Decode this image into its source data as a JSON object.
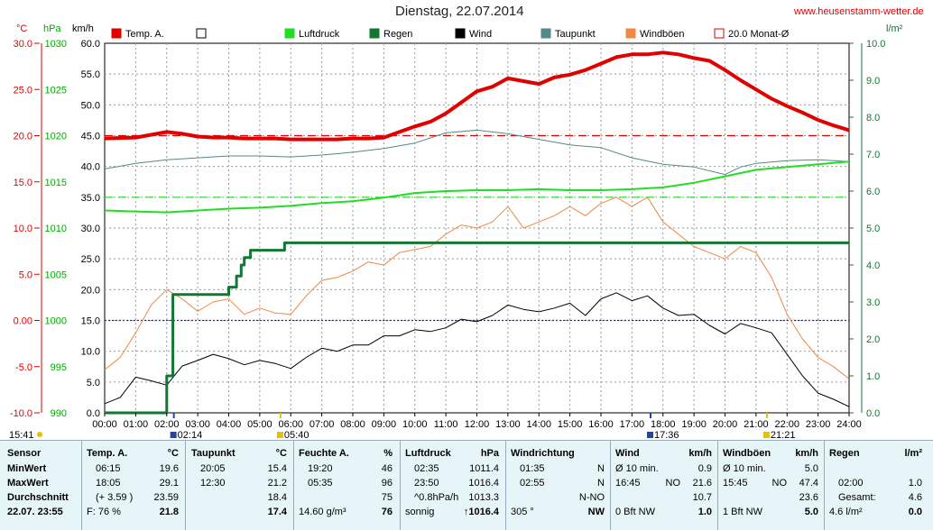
{
  "header": {
    "title": "Dienstag, 22.07.2014",
    "website": "www.heusenstamm-wetter.de"
  },
  "units": {
    "temp": "°C",
    "press": "hPa",
    "wind": "km/h",
    "rain": "l/m²"
  },
  "legend": [
    {
      "label": "Temp. A.",
      "color": "#e00000"
    },
    {
      "label": "",
      "color": "#ffffff"
    },
    {
      "label": "Luftdruck",
      "color": "#22dd22"
    },
    {
      "label": "Regen",
      "color": "#117733"
    },
    {
      "label": "Wind",
      "color": "#000000"
    },
    {
      "label": "Taupunkt",
      "color": "#558888"
    },
    {
      "label": "Windböen",
      "color": "#ee8844"
    },
    {
      "label": "20.0 Monat-Ø",
      "color": "#e00000"
    }
  ],
  "chart_data": {
    "type": "line",
    "x_label_ticks": [
      "00:00",
      "01:00",
      "02:00",
      "03:00",
      "04:00",
      "05:00",
      "06:00",
      "07:00",
      "08:00",
      "09:00",
      "10:00",
      "11:00",
      "12:00",
      "13:00",
      "14:00",
      "15:00",
      "16:00",
      "17:00",
      "18:00",
      "19:00",
      "20:00",
      "21:00",
      "22:00",
      "23:00",
      "24:00"
    ],
    "temp_axis": {
      "ticks": [
        "30.0",
        "25.0",
        "20.0",
        "15.0",
        "10.0",
        "5.0",
        "0.00",
        "-5.0",
        "-10.0"
      ],
      "range": [
        -10,
        30
      ],
      "color": "#e00000"
    },
    "press_axis": {
      "ticks": [
        "1030",
        "1025",
        "1020",
        "1015",
        "1010",
        "1005",
        "1000",
        "995",
        "990"
      ],
      "range": [
        990,
        1030
      ],
      "color": "#00aa00"
    },
    "wind_axis": {
      "ticks": [
        "60.0",
        "55.0",
        "50.0",
        "45.0",
        "40.0",
        "35.0",
        "30.0",
        "25.0",
        "20.0",
        "15.0",
        "10.0",
        "5.0",
        "0.0"
      ],
      "range": [
        0,
        60
      ],
      "color": "#000000"
    },
    "rain_axis": {
      "ticks": [
        "10.0",
        "9.0",
        "8.0",
        "7.0",
        "6.0",
        "5.0",
        "4.0",
        "3.0",
        "2.0",
        "1.0",
        "0.0"
      ],
      "range": [
        0,
        10
      ],
      "color": "#117733"
    },
    "monthly_avg_temp": 20.0,
    "series": [
      {
        "name": "Temp. A.",
        "axis": "temp",
        "color": "#e00000",
        "x": [
          0,
          1,
          1.5,
          2,
          2.5,
          3,
          3.5,
          4,
          4.5,
          5,
          5.5,
          6,
          6.5,
          7,
          7.5,
          8,
          8.5,
          9,
          9.5,
          10,
          10.5,
          11,
          11.5,
          12,
          12.5,
          13,
          13.5,
          14,
          14.5,
          15,
          15.5,
          16,
          16.5,
          17,
          17.5,
          18,
          18.5,
          19,
          19.5,
          20,
          20.5,
          21,
          21.5,
          22,
          22.5,
          23,
          23.5,
          24
        ],
        "values": [
          19.7,
          19.8,
          20.1,
          20.4,
          20.2,
          19.9,
          19.8,
          19.8,
          19.7,
          19.7,
          19.7,
          19.6,
          19.6,
          19.6,
          19.6,
          19.7,
          19.7,
          19.8,
          20.4,
          21.0,
          21.5,
          22.4,
          23.6,
          24.8,
          25.3,
          26.2,
          25.9,
          25.6,
          26.3,
          26.6,
          27.1,
          27.8,
          28.5,
          28.8,
          28.8,
          29.0,
          28.8,
          28.4,
          28.1,
          27.1,
          26.0,
          25.0,
          24.0,
          23.2,
          22.5,
          21.7,
          21.1,
          20.6
        ]
      },
      {
        "name": "Taupunkt",
        "axis": "temp",
        "color": "#558888",
        "x": [
          0,
          1,
          2,
          3,
          4,
          5,
          6,
          7,
          8,
          9,
          10,
          11,
          12,
          13,
          14,
          15,
          16,
          17,
          18,
          19,
          20,
          20.5,
          21,
          22,
          23,
          24
        ],
        "values": [
          16.4,
          17.0,
          17.4,
          17.6,
          17.8,
          17.8,
          17.7,
          17.9,
          18.2,
          18.6,
          19.2,
          20.3,
          20.6,
          20.2,
          19.6,
          19.0,
          18.7,
          17.6,
          16.9,
          16.6,
          15.8,
          16.6,
          17.0,
          17.3,
          17.4,
          17.2
        ]
      },
      {
        "name": "Luftdruck",
        "axis": "press",
        "color": "#22dd22",
        "x": [
          0,
          1,
          2,
          3,
          4,
          5,
          6,
          7,
          8,
          9,
          10,
          11,
          12,
          13,
          14,
          15,
          16,
          17,
          18,
          19,
          20,
          21,
          22,
          23,
          24
        ],
        "values": [
          1011.9,
          1011.8,
          1011.7,
          1011.9,
          1012.1,
          1012.2,
          1012.4,
          1012.7,
          1012.9,
          1013.3,
          1013.8,
          1014.0,
          1014.1,
          1014.1,
          1014.2,
          1014.1,
          1014.1,
          1014.2,
          1014.4,
          1014.9,
          1015.6,
          1016.3,
          1016.6,
          1016.9,
          1017.2
        ]
      },
      {
        "name": "Wind",
        "axis": "wind",
        "color": "#000000",
        "x": [
          0,
          0.5,
          1,
          1.5,
          2,
          2.5,
          3,
          3.5,
          4,
          4.5,
          5,
          5.5,
          6,
          6.5,
          7,
          7.5,
          8,
          8.5,
          9,
          9.5,
          10,
          10.5,
          11,
          11.5,
          12,
          12.5,
          13,
          13.5,
          14,
          14.5,
          15,
          15.5,
          16,
          16.5,
          17,
          17.5,
          18,
          18.5,
          19,
          19.5,
          20,
          20.5,
          21,
          21.5,
          22,
          22.5,
          23,
          23.5,
          24
        ],
        "values": [
          1.5,
          2.5,
          5.8,
          5.2,
          4.5,
          7.6,
          8.5,
          9.5,
          8.8,
          7.8,
          8.5,
          8.0,
          7.2,
          9.0,
          10.5,
          10.0,
          11.0,
          11.0,
          12.5,
          12.5,
          13.5,
          13.2,
          13.8,
          15.2,
          14.8,
          15.8,
          17.5,
          16.8,
          16.4,
          17.0,
          17.8,
          15.8,
          18.5,
          19.5,
          18.2,
          19.0,
          17.0,
          15.8,
          16.0,
          14.2,
          12.8,
          14.5,
          13.8,
          13.0,
          9.5,
          6.0,
          3.2,
          2.2,
          1.0
        ]
      },
      {
        "name": "Windböen",
        "axis": "wind",
        "color": "#ee8844",
        "x": [
          0,
          0.5,
          1,
          1.5,
          2,
          2.5,
          3,
          3.5,
          4,
          4.5,
          5,
          5.5,
          6,
          6.5,
          7,
          7.5,
          8,
          8.5,
          9,
          9.5,
          10,
          10.5,
          11,
          11.5,
          12,
          12.5,
          13,
          13.5,
          14,
          14.5,
          15,
          15.5,
          16,
          16.5,
          17,
          17.5,
          18,
          18.5,
          19,
          19.5,
          20,
          20.5,
          21,
          21.5,
          22,
          22.5,
          23,
          23.5,
          24
        ],
        "values": [
          7.0,
          9.0,
          13.0,
          17.5,
          20.0,
          18.5,
          16.5,
          18.0,
          18.5,
          16.0,
          17.0,
          16.2,
          16.0,
          19.0,
          21.5,
          22.0,
          23.0,
          24.5,
          24.0,
          26.0,
          26.5,
          27.0,
          29.0,
          30.5,
          30.0,
          31.0,
          33.5,
          30.0,
          31.0,
          32.0,
          33.5,
          32.0,
          34.0,
          35.0,
          33.5,
          35.0,
          31.0,
          29.0,
          27.0,
          26.0,
          25.0,
          27.0,
          26.0,
          22.0,
          16.0,
          12.0,
          9.0,
          7.5,
          5.5
        ]
      },
      {
        "name": "Regen",
        "axis": "rain",
        "color": "#117733",
        "x": [
          0,
          1.75,
          2.0,
          2.2,
          3.8,
          4.0,
          4.25,
          4.4,
          4.5,
          4.7,
          5.6,
          5.8,
          24
        ],
        "values": [
          0,
          0,
          1.0,
          3.2,
          3.2,
          3.4,
          3.7,
          4.0,
          4.2,
          4.4,
          4.4,
          4.6,
          4.6
        ]
      }
    ],
    "dashed_lines": [
      {
        "axis": "wind",
        "value": 45.0,
        "color": "#e00000"
      },
      {
        "axis": "wind",
        "value": 35.0,
        "color": "#22dd22"
      },
      {
        "axis": "wind",
        "value": 15.0,
        "color": "#2222ee"
      }
    ],
    "events": [
      {
        "x": 2.23,
        "label": "02:14",
        "color": "#2244aa"
      },
      {
        "x": 5.67,
        "label": "05:40",
        "color": "#e8c000"
      },
      {
        "x": 17.6,
        "label": "17:36",
        "color": "#2244aa"
      },
      {
        "x": 21.35,
        "label": "21:21",
        "color": "#e8c000"
      }
    ],
    "left_marker": {
      "label": "15:41",
      "color": "#e8c000"
    }
  },
  "footer": {
    "sensor": {
      "label": "Sensor",
      "rows": [
        "MinWert",
        "MaxWert",
        "Durchschnitt",
        "22.07.  23:55"
      ]
    },
    "temp": {
      "label": "Temp. A.",
      "unit": "°C",
      "rows": [
        [
          "06:15",
          "19.6"
        ],
        [
          "18:05",
          "29.1"
        ],
        [
          "(+ 3.59 )",
          "23.59"
        ],
        [
          "F: 76 %",
          "21.8"
        ]
      ]
    },
    "dew": {
      "label": "Taupunkt",
      "unit": "°C",
      "rows": [
        [
          "20:05",
          "15.4"
        ],
        [
          "12:30",
          "21.2"
        ],
        [
          "",
          "18.4"
        ],
        [
          "",
          "17.4"
        ]
      ]
    },
    "hum": {
      "label": "Feuchte A.",
      "unit": "%",
      "rows": [
        [
          "19:20",
          "46"
        ],
        [
          "05:35",
          "96"
        ],
        [
          "",
          "75"
        ],
        [
          "14.60 g/m³",
          "76"
        ]
      ]
    },
    "press": {
      "label": "Luftdruck",
      "unit": "hPa",
      "rows": [
        [
          "02:35",
          "1011.4"
        ],
        [
          "23:50",
          "1016.4"
        ],
        [
          "^0.8hPa/h",
          "1013.3"
        ],
        [
          "sonnig",
          "↑1016.4"
        ]
      ]
    },
    "dir": {
      "label": "Windrichtung",
      "rows": [
        [
          "01:35",
          "N"
        ],
        [
          "02:55",
          "N"
        ],
        [
          "",
          "N-NO"
        ],
        [
          "305 °",
          "NW"
        ]
      ]
    },
    "wind": {
      "label": "Wind",
      "unit": "km/h",
      "rows": [
        [
          "Ø 10 min.",
          "",
          "0.9"
        ],
        [
          "16:45",
          "NO",
          "21.6"
        ],
        [
          "",
          "",
          "10.7"
        ],
        [
          "0 Bft NW",
          "",
          "1.0"
        ]
      ]
    },
    "gust": {
      "label": "Windböen",
      "unit": "km/h",
      "rows": [
        [
          "Ø 10 min.",
          "",
          "5.0"
        ],
        [
          "15:45",
          "NO",
          "47.4"
        ],
        [
          "",
          "",
          "23.6"
        ],
        [
          "1 Bft NW",
          "",
          "5.0"
        ]
      ]
    },
    "rain": {
      "label": "Regen",
      "unit": "l/m²",
      "rows": [
        [
          "",
          ""
        ],
        [
          "02:00",
          "1.0"
        ],
        [
          "Gesamt:",
          "4.6"
        ],
        [
          "4.6 l/m²",
          "0.0"
        ]
      ]
    }
  }
}
